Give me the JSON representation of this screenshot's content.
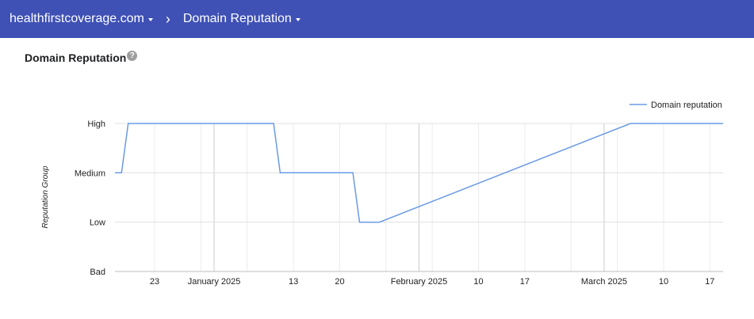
{
  "breadcrumb": {
    "domain": "healthfirstcoverage.com",
    "separator": "›",
    "page": "Domain Reputation"
  },
  "panel": {
    "title": "Domain Reputation",
    "help_icon": "?"
  },
  "chart_data": {
    "type": "line",
    "title": "",
    "ylabel": "Reputation Group",
    "xlabel": "",
    "y_categories": [
      "Bad",
      "Low",
      "Medium",
      "High"
    ],
    "x_ticks": [
      "23",
      "January 2025",
      "13",
      "20",
      "February 2025",
      "10",
      "17",
      "March 2025",
      "10",
      "17"
    ],
    "x_tick_dates": [
      "2024-12-23",
      "2025-01-01",
      "2025-01-13",
      "2025-01-20",
      "2025-02-01",
      "2025-02-10",
      "2025-02-17",
      "2025-03-01",
      "2025-03-10",
      "2025-03-17"
    ],
    "xlim": [
      "2024-12-17",
      "2025-03-19"
    ],
    "legend": {
      "position": "top-right"
    },
    "series": [
      {
        "name": "Domain reputation",
        "color": "#6a9be3",
        "x": [
          "2024-12-17",
          "2024-12-18",
          "2024-12-19",
          "2025-01-10",
          "2025-01-11",
          "2025-01-22",
          "2025-01-23",
          "2025-01-26",
          "2025-03-05",
          "2025-03-19"
        ],
        "y": [
          "Medium",
          "Medium",
          "High",
          "High",
          "Medium",
          "Medium",
          "Low",
          "Low",
          "High",
          "High"
        ]
      }
    ]
  }
}
